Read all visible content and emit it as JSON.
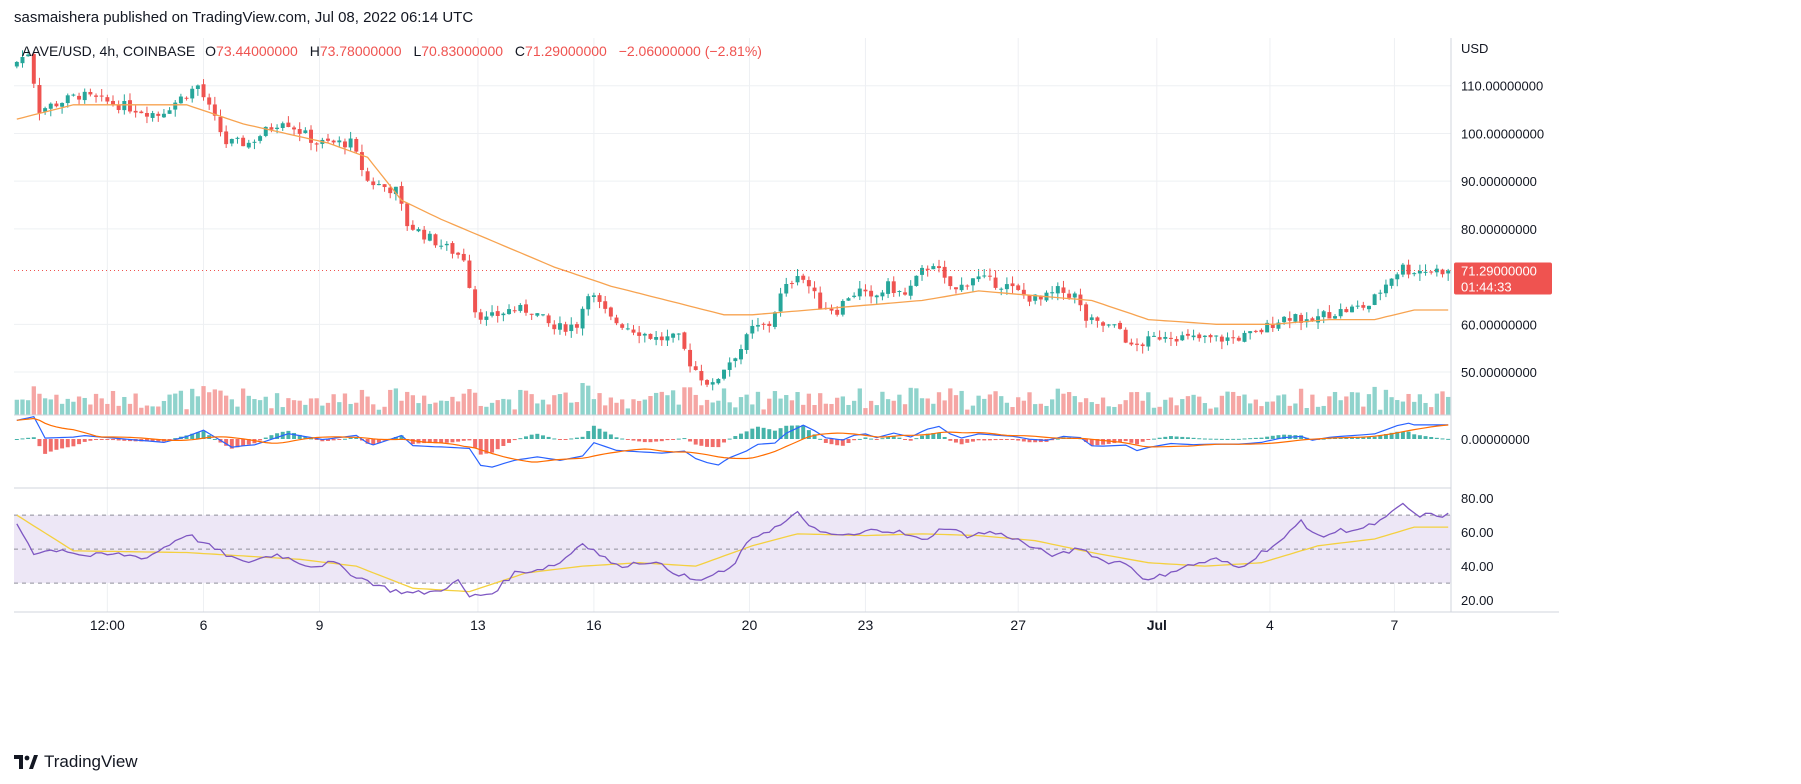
{
  "header": {
    "publish_line": "sasmaishera published on TradingView.com, Jul 08, 2022 06:14 UTC"
  },
  "legend": {
    "symbol": "AAVE/USD, 4h, COINBASE",
    "o_label": "O",
    "o_value": "73.44000000",
    "h_label": "H",
    "h_value": "73.78000000",
    "l_label": "L",
    "l_value": "70.83000000",
    "c_label": "C",
    "c_value": "71.29000000",
    "change": "−2.06000000 (−2.81%)"
  },
  "brand": {
    "name": "TradingView"
  },
  "colors": {
    "up": "#26a69a",
    "down": "#ef5350",
    "up_volume": "#8fd3cc",
    "down_volume": "#f5a6a4",
    "ma": "#f7a350",
    "macd": "#2962ff",
    "signal": "#ff6d00",
    "rsi": "#7e57c2",
    "rsi_ma": "#f4d03f",
    "rsi_band": "#ede7f6",
    "grid": "#eef0f3",
    "axis_text": "#131722",
    "price_badge": "#ef5350"
  },
  "chart_data": {
    "type": "candlestick",
    "currency_label": "USD",
    "price_axis": {
      "ticks": [
        "110.00000000",
        "100.00000000",
        "90.00000000",
        "80.00000000",
        "60.00000000",
        "50.00000000"
      ],
      "tick_values": [
        110,
        100,
        90,
        80,
        60,
        50
      ],
      "range": [
        41,
        120
      ]
    },
    "last_price": {
      "value": 71.29,
      "label": "71.29000000",
      "countdown": "01:44:33"
    },
    "macd_axis": {
      "ticks": [
        "0.00000000"
      ]
    },
    "rsi_axis": {
      "ticks": [
        "80.00",
        "60.00",
        "40.00",
        "20.00"
      ],
      "tick_values": [
        80,
        60,
        40,
        20
      ],
      "bands": [
        70,
        50,
        30
      ],
      "range": [
        13,
        86
      ]
    },
    "x_labels": [
      "12:00",
      "6",
      "9",
      "13",
      "16",
      "20",
      "23",
      "27",
      "Jul",
      "4",
      "7"
    ],
    "x_label_positions": [
      16.5,
      33.5,
      54,
      82,
      102.5,
      130,
      150.5,
      177.5,
      202,
      222,
      244
    ],
    "bars_count": 254,
    "price_anchors": [
      [
        0,
        114
      ],
      [
        3,
        117
      ],
      [
        5,
        105
      ],
      [
        12,
        108
      ],
      [
        19,
        106
      ],
      [
        26,
        104
      ],
      [
        33,
        110
      ],
      [
        38,
        98
      ],
      [
        42,
        98
      ],
      [
        48,
        103
      ],
      [
        54,
        98
      ],
      [
        60,
        98
      ],
      [
        63,
        90
      ],
      [
        68,
        88
      ],
      [
        70,
        81
      ],
      [
        74,
        78
      ],
      [
        77,
        76
      ],
      [
        80,
        74
      ],
      [
        82,
        63
      ],
      [
        84,
        61
      ],
      [
        88,
        63
      ],
      [
        92,
        63
      ],
      [
        96,
        59
      ],
      [
        100,
        60
      ],
      [
        102,
        67
      ],
      [
        106,
        61
      ],
      [
        110,
        59
      ],
      [
        114,
        57
      ],
      [
        118,
        57
      ],
      [
        120,
        52
      ],
      [
        122,
        49
      ],
      [
        124,
        47
      ],
      [
        126,
        51
      ],
      [
        129,
        55
      ],
      [
        131,
        59
      ],
      [
        134,
        60
      ],
      [
        136,
        66
      ],
      [
        139,
        71
      ],
      [
        141,
        68
      ],
      [
        143,
        64
      ],
      [
        146,
        63
      ],
      [
        148,
        66
      ],
      [
        150,
        67
      ],
      [
        152,
        65
      ],
      [
        155,
        68
      ],
      [
        158,
        66
      ],
      [
        161,
        71
      ],
      [
        163,
        73
      ],
      [
        165,
        69
      ],
      [
        167,
        67
      ],
      [
        170,
        70
      ],
      [
        173,
        69
      ],
      [
        176,
        68
      ],
      [
        179,
        66
      ],
      [
        182,
        65
      ],
      [
        185,
        67
      ],
      [
        188,
        66
      ],
      [
        190,
        61
      ],
      [
        192,
        60
      ],
      [
        196,
        59
      ],
      [
        198,
        55
      ],
      [
        200,
        56
      ],
      [
        204,
        58
      ],
      [
        208,
        57
      ],
      [
        212,
        57
      ],
      [
        216,
        57
      ],
      [
        220,
        58
      ],
      [
        224,
        61
      ],
      [
        227,
        62
      ],
      [
        229,
        60
      ],
      [
        232,
        62
      ],
      [
        236,
        63
      ],
      [
        240,
        64
      ],
      [
        244,
        70
      ],
      [
        246,
        72
      ],
      [
        247,
        71.29
      ]
    ],
    "ma_anchors": [
      [
        0,
        103
      ],
      [
        10,
        106
      ],
      [
        30,
        106
      ],
      [
        40,
        102
      ],
      [
        55,
        98
      ],
      [
        62,
        95
      ],
      [
        68,
        86
      ],
      [
        75,
        82
      ],
      [
        85,
        77
      ],
      [
        95,
        72
      ],
      [
        105,
        68
      ],
      [
        115,
        65
      ],
      [
        125,
        62
      ],
      [
        130,
        62
      ],
      [
        140,
        63
      ],
      [
        150,
        64
      ],
      [
        160,
        65
      ],
      [
        170,
        67
      ],
      [
        180,
        66
      ],
      [
        190,
        65
      ],
      [
        200,
        61
      ],
      [
        212,
        60
      ],
      [
        222,
        60
      ],
      [
        232,
        61
      ],
      [
        240,
        61
      ],
      [
        247,
        63
      ]
    ],
    "rsi_anchors": [
      [
        0,
        65
      ],
      [
        3,
        48
      ],
      [
        8,
        50
      ],
      [
        12,
        46
      ],
      [
        18,
        47
      ],
      [
        23,
        45
      ],
      [
        30,
        59
      ],
      [
        35,
        50
      ],
      [
        40,
        42
      ],
      [
        46,
        47
      ],
      [
        52,
        40
      ],
      [
        56,
        42
      ],
      [
        60,
        34
      ],
      [
        66,
        26
      ],
      [
        70,
        24
      ],
      [
        74,
        25
      ],
      [
        78,
        31
      ],
      [
        80,
        22
      ],
      [
        84,
        24
      ],
      [
        88,
        36
      ],
      [
        92,
        38
      ],
      [
        96,
        42
      ],
      [
        100,
        54
      ],
      [
        106,
        40
      ],
      [
        112,
        43
      ],
      [
        116,
        37
      ],
      [
        120,
        31
      ],
      [
        126,
        38
      ],
      [
        130,
        57
      ],
      [
        135,
        64
      ],
      [
        138,
        71
      ],
      [
        142,
        59
      ],
      [
        148,
        58
      ],
      [
        152,
        62
      ],
      [
        156,
        60
      ],
      [
        160,
        55
      ],
      [
        164,
        63
      ],
      [
        168,
        58
      ],
      [
        172,
        60
      ],
      [
        176,
        57
      ],
      [
        180,
        50
      ],
      [
        184,
        46
      ],
      [
        188,
        51
      ],
      [
        192,
        43
      ],
      [
        196,
        42
      ],
      [
        200,
        31
      ],
      [
        204,
        37
      ],
      [
        208,
        41
      ],
      [
        212,
        44
      ],
      [
        216,
        39
      ],
      [
        220,
        48
      ],
      [
        224,
        56
      ],
      [
        227,
        67
      ],
      [
        230,
        57
      ],
      [
        234,
        61
      ],
      [
        238,
        62
      ],
      [
        242,
        68
      ],
      [
        245,
        77
      ],
      [
        247,
        70
      ]
    ],
    "rsi_ma_anchors": [
      [
        0,
        70
      ],
      [
        10,
        49
      ],
      [
        30,
        48
      ],
      [
        50,
        44
      ],
      [
        60,
        40
      ],
      [
        70,
        27
      ],
      [
        80,
        25
      ],
      [
        90,
        36
      ],
      [
        100,
        40
      ],
      [
        110,
        42
      ],
      [
        120,
        40
      ],
      [
        130,
        52
      ],
      [
        138,
        59
      ],
      [
        150,
        58
      ],
      [
        160,
        59
      ],
      [
        170,
        58
      ],
      [
        180,
        55
      ],
      [
        190,
        48
      ],
      [
        200,
        42
      ],
      [
        210,
        40
      ],
      [
        220,
        42
      ],
      [
        230,
        52
      ],
      [
        240,
        56
      ],
      [
        247,
        63
      ]
    ]
  }
}
